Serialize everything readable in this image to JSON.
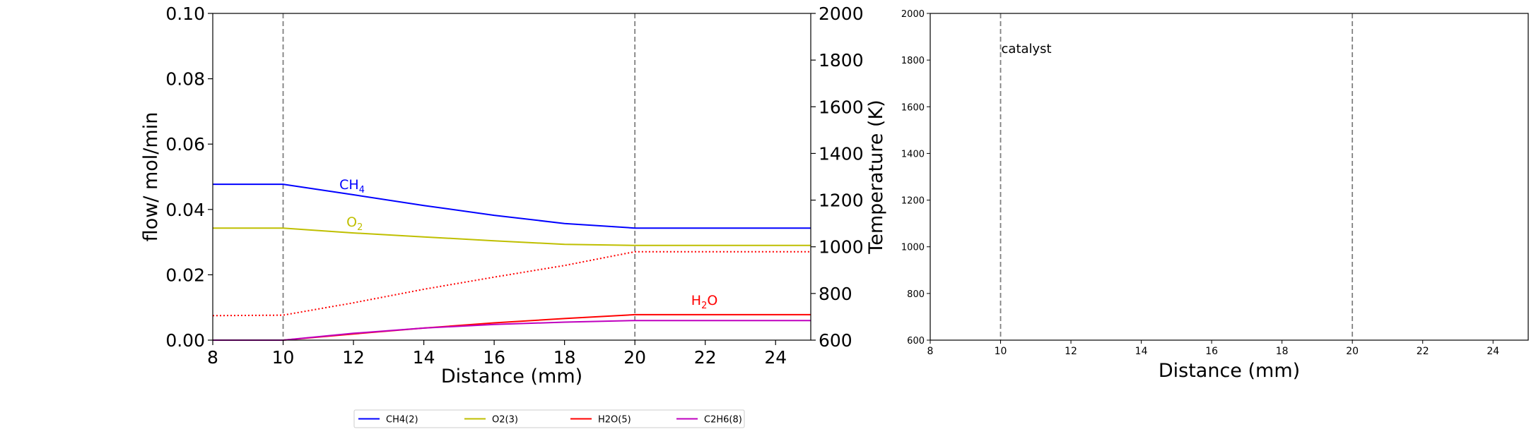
{
  "chart_data": [
    {
      "type": "line",
      "xlabel": "Distance (mm)",
      "ylabel": "flow/ mol/min",
      "y2label": "Temperature (K)",
      "xlim": [
        8,
        25
      ],
      "ylim": [
        0,
        0.1
      ],
      "y2lim": [
        600,
        2000
      ],
      "xticks": [
        "8",
        "10",
        "12",
        "14",
        "16",
        "18",
        "20",
        "22",
        "24"
      ],
      "yticks": [
        "0.00",
        "0.02",
        "0.04",
        "0.06",
        "0.08",
        "0.10"
      ],
      "y2ticks": [
        "600",
        "800",
        "1000",
        "1200",
        "1400",
        "1600",
        "1800",
        "2000"
      ],
      "vlines": [
        10,
        20
      ],
      "series": [
        {
          "name": "CH4(2)",
          "color": "#0000ff",
          "x": [
            8,
            10,
            12,
            14,
            16,
            18,
            20,
            25
          ],
          "values": [
            0.0477,
            0.0477,
            0.0445,
            0.0412,
            0.0382,
            0.0357,
            0.0343,
            0.0343
          ]
        },
        {
          "name": "O2(3)",
          "color": "#bfbf00",
          "x": [
            8,
            10,
            12,
            14,
            16,
            18,
            20,
            25
          ],
          "values": [
            0.0343,
            0.0343,
            0.0328,
            0.0316,
            0.0304,
            0.0293,
            0.029,
            0.029
          ]
        },
        {
          "name": "H2O(5)",
          "color": "#ff0000",
          "x": [
            8,
            10,
            12,
            14,
            16,
            18,
            20,
            25
          ],
          "values": [
            0.0,
            0.0,
            0.0019,
            0.0037,
            0.0053,
            0.0066,
            0.0078,
            0.0078
          ]
        },
        {
          "name": "C2H6(8)",
          "color": "#bf00bf",
          "x": [
            8,
            10,
            12,
            14,
            16,
            18,
            20,
            25
          ],
          "values": [
            0.0,
            0.0,
            0.0021,
            0.0037,
            0.0048,
            0.0055,
            0.006,
            0.006
          ]
        }
      ],
      "temperature": {
        "color": "#ff0000",
        "style": "dotted",
        "axis": "right",
        "x": [
          8,
          10,
          12,
          14,
          16,
          18,
          20,
          25
        ],
        "values": [
          705,
          707,
          760,
          818,
          870,
          920,
          979,
          979
        ]
      },
      "annotations": [
        {
          "text": "CH",
          "sub": "4",
          "x": 11.6,
          "y": 0.0462,
          "color": "#0000ff"
        },
        {
          "text": "O",
          "sub": "2",
          "x": 11.8,
          "y": 0.0348,
          "color": "#bfbf00"
        },
        {
          "text": "H",
          "sub": "2",
          "after": "O",
          "x": 21.6,
          "y": 0.0108,
          "color": "#ff0000"
        }
      ],
      "legend": {
        "placement": "bottom-center",
        "entries": [
          "CH4(2)",
          "O2(3)",
          "H2O(5)",
          "C2H6(8)"
        ]
      }
    },
    {
      "type": "line",
      "xlabel": "Distance (mm)",
      "xlim": [
        8,
        25
      ],
      "ylim": [
        600,
        2000
      ],
      "xticks": [
        "8",
        "10",
        "12",
        "14",
        "16",
        "18",
        "20",
        "22",
        "24"
      ],
      "yticks": [
        "600",
        "800",
        "1000",
        "1200",
        "1400",
        "1600",
        "1800",
        "2000"
      ],
      "vlines": [
        10,
        20
      ],
      "annotations": [
        {
          "text": "catalyst",
          "x": 10.0,
          "y": 1830
        }
      ],
      "series": []
    }
  ]
}
